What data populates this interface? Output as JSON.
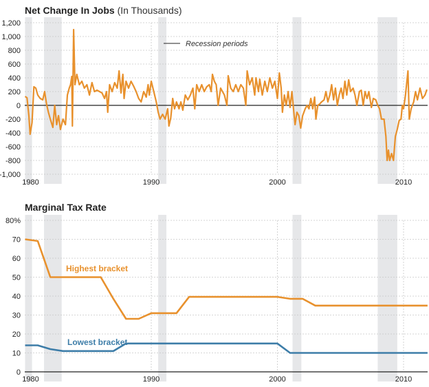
{
  "colors": {
    "jobs": "#E8912D",
    "highest": "#E8912D",
    "lowest": "#3D7DA8",
    "recession": "#E6E7E9",
    "grid": "#C8C8C8",
    "zero": "#222222"
  },
  "chart_data": [
    {
      "type": "line",
      "title": "Net Change In Jobs",
      "subtitle": "(In Thousands)",
      "legend": {
        "label": "Recession periods",
        "placement": "top-center"
      },
      "xlim": [
        1980,
        2011.9
      ],
      "ylim": [
        -1000,
        1200
      ],
      "grid": true,
      "x_ticks": [
        1980,
        1990,
        2000,
        2010
      ],
      "y_ticks": [
        1200,
        1000,
        800,
        600,
        400,
        200,
        0,
        -200,
        -400,
        -600,
        -800,
        -1000
      ],
      "y_tick_labels": [
        "1,200",
        "1,000",
        "800",
        "600",
        "400",
        "200",
        "0",
        "-200",
        "-400",
        "-600",
        "-800",
        "-1,000"
      ],
      "recessions": [
        [
          1980.0,
          1980.55
        ],
        [
          1981.5,
          1982.9
        ],
        [
          1990.55,
          1991.2
        ],
        [
          2001.2,
          2001.9
        ],
        [
          2007.95,
          2009.5
        ]
      ],
      "series": [
        {
          "points": [
            [
              1980.0,
              130
            ],
            [
              1980.15,
              110
            ],
            [
              1980.3,
              -150
            ],
            [
              1980.4,
              -420
            ],
            [
              1980.55,
              -250
            ],
            [
              1980.7,
              270
            ],
            [
              1980.85,
              250
            ],
            [
              1981.0,
              150
            ],
            [
              1981.2,
              100
            ],
            [
              1981.4,
              80
            ],
            [
              1981.55,
              200
            ],
            [
              1981.7,
              20
            ],
            [
              1981.85,
              -100
            ],
            [
              1982.0,
              -200
            ],
            [
              1982.2,
              -320
            ],
            [
              1982.35,
              0
            ],
            [
              1982.5,
              -280
            ],
            [
              1982.65,
              -150
            ],
            [
              1982.8,
              -350
            ],
            [
              1983.0,
              -200
            ],
            [
              1983.2,
              -280
            ],
            [
              1983.35,
              150
            ],
            [
              1983.5,
              250
            ],
            [
              1983.6,
              300
            ],
            [
              1983.7,
              420
            ],
            [
              1983.75,
              -300
            ],
            [
              1983.85,
              1100
            ],
            [
              1983.95,
              300
            ],
            [
              1984.1,
              450
            ],
            [
              1984.3,
              300
            ],
            [
              1984.5,
              350
            ],
            [
              1984.7,
              250
            ],
            [
              1984.9,
              300
            ],
            [
              1985.1,
              150
            ],
            [
              1985.3,
              330
            ],
            [
              1985.5,
              200
            ],
            [
              1985.7,
              220
            ],
            [
              1985.9,
              200
            ],
            [
              1986.1,
              180
            ],
            [
              1986.3,
              100
            ],
            [
              1986.45,
              200
            ],
            [
              1986.55,
              -100
            ],
            [
              1986.7,
              300
            ],
            [
              1986.9,
              200
            ],
            [
              1987.1,
              330
            ],
            [
              1987.3,
              250
            ],
            [
              1987.45,
              500
            ],
            [
              1987.6,
              180
            ],
            [
              1987.75,
              450
            ],
            [
              1987.85,
              100
            ],
            [
              1988.0,
              350
            ],
            [
              1988.2,
              250
            ],
            [
              1988.4,
              350
            ],
            [
              1988.6,
              280
            ],
            [
              1988.8,
              200
            ],
            [
              1989.0,
              100
            ],
            [
              1989.2,
              50
            ],
            [
              1989.4,
              200
            ],
            [
              1989.6,
              120
            ],
            [
              1989.75,
              300
            ],
            [
              1989.85,
              150
            ],
            [
              1990.0,
              350
            ],
            [
              1990.2,
              200
            ],
            [
              1990.4,
              50
            ],
            [
              1990.55,
              -100
            ],
            [
              1990.7,
              -200
            ],
            [
              1990.9,
              -130
            ],
            [
              1991.1,
              -200
            ],
            [
              1991.3,
              -50
            ],
            [
              1991.4,
              -300
            ],
            [
              1991.55,
              -180
            ],
            [
              1991.7,
              100
            ],
            [
              1991.85,
              -50
            ],
            [
              1992.0,
              50
            ],
            [
              1992.2,
              -50
            ],
            [
              1992.35,
              50
            ],
            [
              1992.5,
              -70
            ],
            [
              1992.7,
              150
            ],
            [
              1992.9,
              80
            ],
            [
              1993.1,
              150
            ],
            [
              1993.3,
              250
            ],
            [
              1993.45,
              -50
            ],
            [
              1993.6,
              300
            ],
            [
              1993.8,
              200
            ],
            [
              1994.0,
              300
            ],
            [
              1994.2,
              200
            ],
            [
              1994.4,
              270
            ],
            [
              1994.6,
              300
            ],
            [
              1994.75,
              200
            ],
            [
              1994.85,
              450
            ],
            [
              1995.0,
              350
            ],
            [
              1995.15,
              300
            ],
            [
              1995.3,
              0
            ],
            [
              1995.5,
              250
            ],
            [
              1995.8,
              150
            ],
            [
              1996.0,
              0
            ],
            [
              1996.1,
              430
            ],
            [
              1996.3,
              250
            ],
            [
              1996.5,
              200
            ],
            [
              1996.7,
              300
            ],
            [
              1996.9,
              200
            ],
            [
              1997.1,
              300
            ],
            [
              1997.3,
              250
            ],
            [
              1997.5,
              0
            ],
            [
              1997.6,
              500
            ],
            [
              1997.8,
              300
            ],
            [
              1998.0,
              400
            ],
            [
              1998.2,
              150
            ],
            [
              1998.3,
              400
            ],
            [
              1998.5,
              200
            ],
            [
              1998.6,
              380
            ],
            [
              1998.8,
              150
            ],
            [
              1999.0,
              350
            ],
            [
              1999.2,
              200
            ],
            [
              1999.4,
              400
            ],
            [
              1999.6,
              250
            ],
            [
              1999.8,
              350
            ],
            [
              2000.0,
              100
            ],
            [
              2000.15,
              470
            ],
            [
              2000.3,
              250
            ],
            [
              2000.4,
              -100
            ],
            [
              2000.55,
              150
            ],
            [
              2000.7,
              0
            ],
            [
              2000.85,
              200
            ],
            [
              2001.0,
              -30
            ],
            [
              2001.15,
              200
            ],
            [
              2001.3,
              -100
            ],
            [
              2001.4,
              -280
            ],
            [
              2001.55,
              -100
            ],
            [
              2001.7,
              -150
            ],
            [
              2001.85,
              -330
            ],
            [
              2002.0,
              -150
            ],
            [
              2002.2,
              -50
            ],
            [
              2002.35,
              0
            ],
            [
              2002.5,
              -50
            ],
            [
              2002.65,
              100
            ],
            [
              2002.8,
              -50
            ],
            [
              2002.95,
              120
            ],
            [
              2003.05,
              -200
            ],
            [
              2003.2,
              0
            ],
            [
              2003.35,
              20
            ],
            [
              2003.5,
              50
            ],
            [
              2003.7,
              80
            ],
            [
              2003.85,
              200
            ],
            [
              2004.0,
              50
            ],
            [
              2004.15,
              150
            ],
            [
              2004.3,
              300
            ],
            [
              2004.45,
              80
            ],
            [
              2004.6,
              250
            ],
            [
              2004.75,
              0
            ],
            [
              2004.9,
              150
            ],
            [
              2005.05,
              250
            ],
            [
              2005.2,
              100
            ],
            [
              2005.35,
              350
            ],
            [
              2005.5,
              150
            ],
            [
              2005.65,
              370
            ],
            [
              2005.8,
              200
            ],
            [
              2006.0,
              250
            ],
            [
              2006.15,
              150
            ],
            [
              2006.3,
              0
            ],
            [
              2006.5,
              200
            ],
            [
              2006.65,
              220
            ],
            [
              2006.8,
              0
            ],
            [
              2006.95,
              200
            ],
            [
              2007.1,
              100
            ],
            [
              2007.25,
              200
            ],
            [
              2007.45,
              -30
            ],
            [
              2007.6,
              100
            ],
            [
              2007.8,
              80
            ],
            [
              2007.95,
              0
            ],
            [
              2008.1,
              -50
            ],
            [
              2008.25,
              -200
            ],
            [
              2008.45,
              -200
            ],
            [
              2008.6,
              -450
            ],
            [
              2008.7,
              -800
            ],
            [
              2008.8,
              -650
            ],
            [
              2008.9,
              -800
            ],
            [
              2009.05,
              -700
            ],
            [
              2009.2,
              -800
            ],
            [
              2009.35,
              -450
            ],
            [
              2009.5,
              -350
            ],
            [
              2009.65,
              -220
            ],
            [
              2009.8,
              -200
            ],
            [
              2009.9,
              0
            ],
            [
              2010.0,
              -50
            ],
            [
              2010.15,
              150
            ],
            [
              2010.35,
              500
            ],
            [
              2010.45,
              -200
            ],
            [
              2010.6,
              -50
            ],
            [
              2010.8,
              50
            ],
            [
              2010.95,
              200
            ],
            [
              2011.1,
              80
            ],
            [
              2011.3,
              250
            ],
            [
              2011.5,
              100
            ],
            [
              2011.7,
              150
            ],
            [
              2011.85,
              230
            ]
          ]
        }
      ]
    },
    {
      "type": "line",
      "title": "Marginal Tax Rate",
      "xlim": [
        1980,
        2011.9
      ],
      "ylim": [
        0,
        80
      ],
      "grid": true,
      "x_ticks": [
        1980,
        1990,
        2000,
        2010
      ],
      "y_ticks": [
        80,
        70,
        60,
        50,
        40,
        30,
        20,
        10,
        0
      ],
      "y_tick_labels": [
        "80%",
        "70",
        "60",
        "50",
        "40",
        "30",
        "20",
        "10",
        "0"
      ],
      "recessions": [
        [
          1980.0,
          1980.55
        ],
        [
          1981.5,
          1982.9
        ],
        [
          1990.55,
          1991.2
        ],
        [
          2001.2,
          2001.9
        ],
        [
          2007.95,
          2009.5
        ]
      ],
      "series": [
        {
          "name": "Highest bracket",
          "points": [
            [
              1980,
              70
            ],
            [
              1981,
              69.1
            ],
            [
              1982,
              50
            ],
            [
              1986,
              50
            ],
            [
              1987,
              38.5
            ],
            [
              1988,
              28
            ],
            [
              1989,
              28
            ],
            [
              1990,
              31
            ],
            [
              1992,
              31
            ],
            [
              1993,
              39.6
            ],
            [
              2000,
              39.6
            ],
            [
              2001,
              38.6
            ],
            [
              2002,
              38.6
            ],
            [
              2003,
              35
            ],
            [
              2011.9,
              35
            ]
          ]
        },
        {
          "name": "Lowest bracket",
          "points": [
            [
              1980,
              14
            ],
            [
              1981,
              14
            ],
            [
              1982,
              12
            ],
            [
              1983,
              11
            ],
            [
              1987,
              11
            ],
            [
              1988,
              15
            ],
            [
              2000,
              15
            ],
            [
              2001,
              10
            ],
            [
              2011.9,
              10
            ]
          ]
        }
      ]
    }
  ]
}
